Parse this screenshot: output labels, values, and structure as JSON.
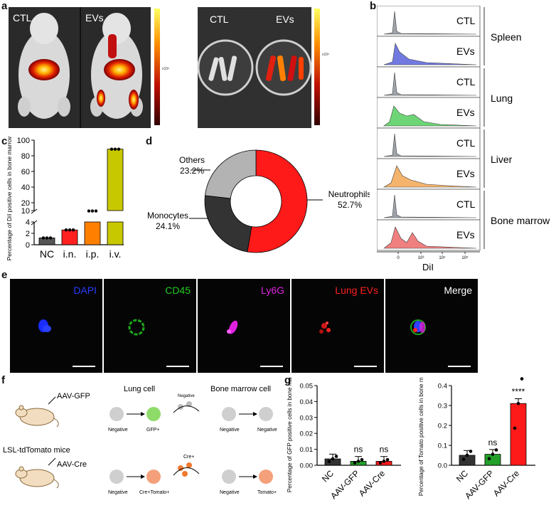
{
  "figure": {
    "panel_letters": [
      "a",
      "b",
      "c",
      "d",
      "e",
      "f",
      "g"
    ]
  },
  "panel_a": {
    "mouse_labels": [
      "CTL",
      "EVs"
    ],
    "bone_labels": [
      "CTL",
      "EVs"
    ],
    "colorbar_exponent": "x10⁸"
  },
  "panel_b": {
    "rows": [
      {
        "group": "CTL",
        "organ": "Spleen",
        "color": "#9aa0a6"
      },
      {
        "group": "EVs",
        "organ": "Spleen",
        "color": "#6b73e0"
      },
      {
        "group": "CTL",
        "organ": "Lung",
        "color": "#9aa0a6"
      },
      {
        "group": "EVs",
        "organ": "Lung",
        "color": "#66d36e"
      },
      {
        "group": "CTL",
        "organ": "Liver",
        "color": "#9aa0a6"
      },
      {
        "group": "EVs",
        "organ": "Liver",
        "color": "#f5b066"
      },
      {
        "group": "CTL",
        "organ": "Bone marrow",
        "color": "#9aa0a6"
      },
      {
        "group": "EVs",
        "organ": "Bone marrow",
        "color": "#f07a7a"
      }
    ],
    "organs": [
      "Spleen",
      "Lung",
      "Liver",
      "Bone marrow"
    ],
    "xlabel": "DiI",
    "x_ticks": [
      "0",
      "10³",
      "10⁴",
      "10⁵"
    ]
  },
  "chart_data": [
    {
      "type": "bar",
      "panel": "c",
      "ylabel": "Percentage of DiI positive cells in bone marrow (%)",
      "categories": [
        "NC",
        "i.n.",
        "i.p.",
        "i.v."
      ],
      "values": [
        1.2,
        2.6,
        9.5,
        88.5
      ],
      "colors": [
        "#555555",
        "#ff2020",
        "#ff8000",
        "#c8c800"
      ],
      "y_ticks_upper": [
        "10",
        "20",
        "40",
        "60",
        "80",
        "100"
      ],
      "y_ticks_lower": [
        "0",
        "2",
        "4"
      ],
      "broken_axis": true
    },
    {
      "type": "pie",
      "panel": "d",
      "slices": [
        {
          "label": "Neutrophils",
          "value": 52.7,
          "display": "52.7%",
          "color": "#ff1a1a"
        },
        {
          "label": "Monocytes",
          "value": 24.1,
          "display": "24.1%",
          "color": "#333333"
        },
        {
          "label": "Others",
          "value": 23.2,
          "display": "23.2%",
          "color": "#b3b3b3"
        }
      ]
    },
    {
      "type": "bar",
      "panel": "g-left",
      "ylabel": "Percentage of GFP positive cells in bone marrow (%)",
      "categories": [
        "NC",
        "AAV-GFP",
        "AAV-Cre"
      ],
      "values": [
        0.004,
        0.0025,
        0.0025
      ],
      "colors": [
        "#333333",
        "#22a02a",
        "#ff1a1a"
      ],
      "ylim": [
        0,
        0.05
      ],
      "y_ticks": [
        "0.00",
        "0.01",
        "0.02",
        "0.03",
        "0.04",
        "0.05"
      ],
      "significance": [
        "",
        "ns",
        "ns"
      ]
    },
    {
      "type": "bar",
      "panel": "g-right",
      "ylabel": "Percentage of Tomato positive cells in bone marrow (%)",
      "categories": [
        "NC",
        "AAV-GFP",
        "AAV-Cre"
      ],
      "values": [
        0.05,
        0.055,
        0.31
      ],
      "colors": [
        "#333333",
        "#22a02a",
        "#ff1a1a"
      ],
      "ylim": [
        0,
        0.4
      ],
      "y_ticks": [
        "0.0",
        "0.1",
        "0.2",
        "0.3",
        "0.4"
      ],
      "significance": [
        "",
        "ns",
        "****"
      ]
    }
  ],
  "panel_e": {
    "channels": [
      {
        "label": "DAPI",
        "color": "#2a3cff"
      },
      {
        "label": "CD45",
        "color": "#22cc22"
      },
      {
        "label": "Ly6G",
        "color": "#dd22dd"
      },
      {
        "label": "Lung EVs",
        "color": "#ff2020"
      },
      {
        "label": "Merge",
        "color": "#ffffff"
      }
    ]
  },
  "panel_f": {
    "mouse_labels": [
      "AAV-GFP",
      "AAV-Cre"
    ],
    "strain": "LSL-tdTomato mice",
    "lung_cell": "Lung cell",
    "bone_marrow_cell": "Bone marrow cell",
    "row1": {
      "start": "Negative",
      "lung_end": "GFP+",
      "vesicle": "Negative",
      "bm_start": "Negative",
      "bm_end": "Negative"
    },
    "row2": {
      "start": "Negative",
      "lung_end": "Cre+Tomato+",
      "vesicle": "Cre+",
      "bm_start": "Negative",
      "bm_end": "Tomato+"
    }
  }
}
